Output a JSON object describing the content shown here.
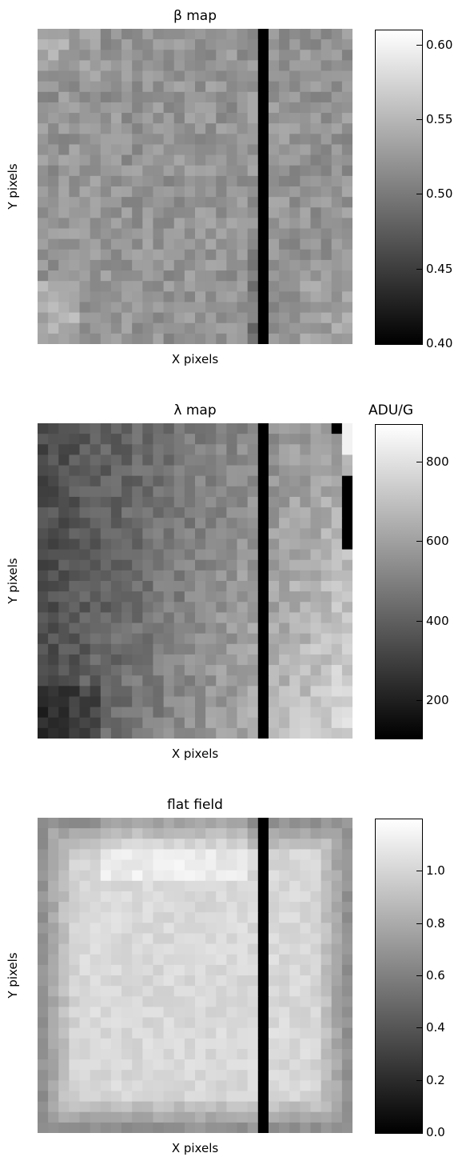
{
  "chart_data": [
    {
      "type": "heatmap",
      "title": "β map",
      "unit_label": "",
      "xlabel": "X pixels",
      "ylabel": "Y pixels",
      "grid_size": [
        30,
        30
      ],
      "dead_column_index": 21,
      "colorbar": {
        "range": [
          0.4,
          0.61
        ],
        "ticks": [
          0.4,
          0.45,
          0.5,
          0.55,
          0.6
        ],
        "tick_labels": [
          "0.40",
          "0.45",
          "0.50",
          "0.55",
          "0.60"
        ]
      },
      "colormap": "grayscale"
    },
    {
      "type": "heatmap",
      "title": "λ map",
      "unit_label": "ADU/G",
      "xlabel": "X pixels",
      "ylabel": "Y pixels",
      "grid_size": [
        30,
        30
      ],
      "dead_column_index": 21,
      "colorbar": {
        "range": [
          105,
          895
        ],
        "ticks": [
          200,
          400,
          600,
          800
        ],
        "tick_labels": [
          "200",
          "400",
          "600",
          "800"
        ]
      },
      "colormap": "grayscale"
    },
    {
      "type": "heatmap",
      "title": "flat field",
      "unit_label": "",
      "xlabel": "X pixels",
      "ylabel": "Y pixels",
      "grid_size": [
        30,
        30
      ],
      "dead_column_index": 21,
      "colorbar": {
        "range": [
          0.0,
          1.2
        ],
        "ticks": [
          0.0,
          0.2,
          0.4,
          0.6,
          0.8,
          1.0
        ],
        "tick_labels": [
          "0.0",
          "0.2",
          "0.4",
          "0.6",
          "0.8",
          "1.0"
        ]
      },
      "colormap": "grayscale"
    }
  ]
}
